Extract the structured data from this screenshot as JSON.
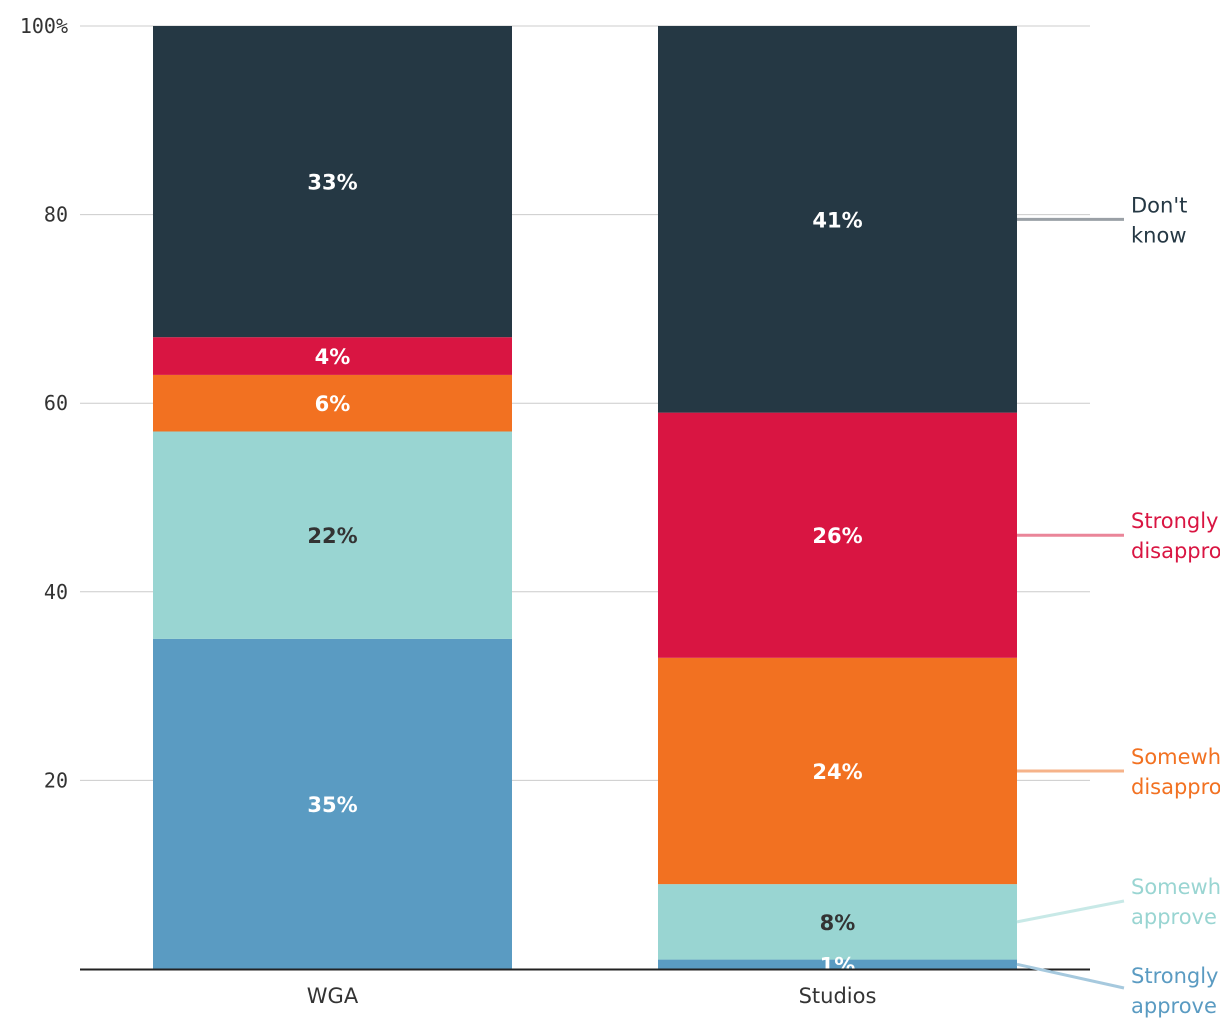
{
  "chart_data": {
    "type": "bar",
    "stacked": true,
    "categories": [
      "WGA",
      "Studios"
    ],
    "ylim": [
      0,
      100
    ],
    "y_ticks": [
      {
        "value": 0,
        "label": ""
      },
      {
        "value": 20,
        "label": "20"
      },
      {
        "value": 40,
        "label": "40"
      },
      {
        "value": 60,
        "label": "60"
      },
      {
        "value": 80,
        "label": "80"
      },
      {
        "value": 100,
        "label": "100%"
      }
    ],
    "grid": true,
    "legend_placement": "right, inline labels aligned to Studios segments",
    "series": [
      {
        "name": "Strongly approve",
        "legend_label_lines": [
          "Strongly",
          "approve"
        ],
        "color": "#5a9bc2",
        "label_color": "#ffffff",
        "values": [
          35,
          1
        ],
        "labels": [
          "35%",
          "1%"
        ]
      },
      {
        "name": "Somewhat approve",
        "legend_label_lines": [
          "Somewhat",
          "approve"
        ],
        "color": "#99d5d2",
        "label_color": "#333333",
        "values": [
          22,
          8
        ],
        "labels": [
          "22%",
          "8%"
        ]
      },
      {
        "name": "Somewhat disapprove",
        "legend_label_lines": [
          "Somewhat",
          "disapprove"
        ],
        "color": "#f27121",
        "label_color": "#ffffff",
        "values": [
          6,
          24
        ],
        "labels": [
          "6%",
          "24%"
        ]
      },
      {
        "name": "Strongly disapprove",
        "legend_label_lines": [
          "Strongly",
          "disapprove"
        ],
        "color": "#d91542",
        "label_color": "#ffffff",
        "values": [
          4,
          26
        ],
        "labels": [
          "4%",
          "26%"
        ]
      },
      {
        "name": "Don't know",
        "legend_label_lines": [
          "Don't",
          "know"
        ],
        "color": "#253844",
        "label_color": "#ffffff",
        "values": [
          33,
          41
        ],
        "labels": [
          "33%",
          "41%"
        ]
      }
    ],
    "legend_colors": {
      "Strongly approve": {
        "line": "#a6c9de",
        "text": "#5a9bc2"
      },
      "Somewhat approve": {
        "line": "#c8e9e7",
        "text": "#99d5d2"
      },
      "Somewhat disapprove": {
        "line": "#f6b38a",
        "text": "#f27121"
      },
      "Strongly disapprove": {
        "line": "#ea8599",
        "text": "#d91542"
      },
      "Don't know": {
        "line": "#9aa0a6",
        "text": "#253844"
      }
    }
  }
}
